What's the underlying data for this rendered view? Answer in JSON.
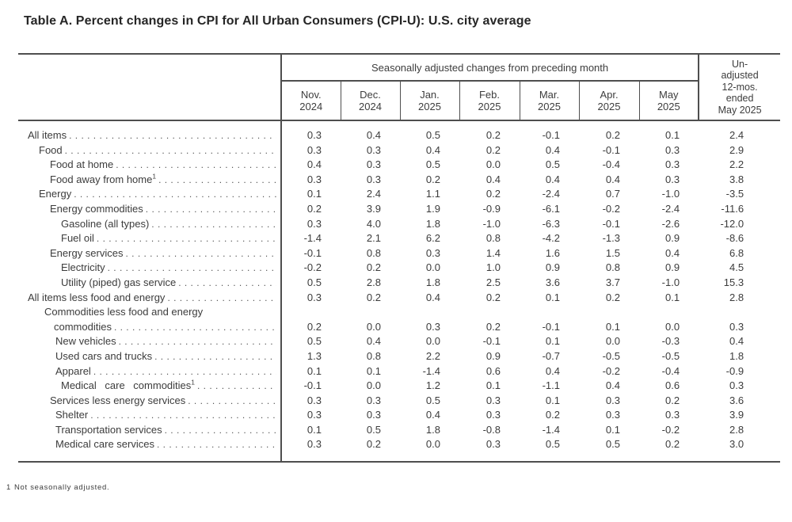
{
  "title": "Table A. Percent changes in CPI for All Urban Consumers (CPI-U): U.S. city average",
  "colors": {
    "text": "#3d3d3d",
    "title": "#262626",
    "border": "#4e4e4e",
    "background": "#ffffff"
  },
  "table": {
    "span_header": "Seasonally adjusted changes from preceding month",
    "months": [
      {
        "abbr": "Nov.",
        "year": "2024"
      },
      {
        "abbr": "Dec.",
        "year": "2024"
      },
      {
        "abbr": "Jan.",
        "year": "2025"
      },
      {
        "abbr": "Feb.",
        "year": "2025"
      },
      {
        "abbr": "Mar.",
        "year": "2025"
      },
      {
        "abbr": "Apr.",
        "year": "2025"
      },
      {
        "abbr": "May",
        "year": "2025"
      }
    ],
    "unadjusted_header_lines": [
      "Un-",
      "adjusted",
      "12-mos.",
      "ended",
      "May 2025"
    ],
    "rows": [
      {
        "label": "All items",
        "level": 0,
        "values": [
          "0.3",
          "0.4",
          "0.5",
          "0.2",
          "-0.1",
          "0.2",
          "0.1",
          "2.4"
        ]
      },
      {
        "label": "Food",
        "level": 1,
        "values": [
          "0.3",
          "0.3",
          "0.4",
          "0.2",
          "0.4",
          "-0.1",
          "0.3",
          "2.9"
        ]
      },
      {
        "label": "Food at home",
        "level": 2,
        "values": [
          "0.4",
          "0.3",
          "0.5",
          "0.0",
          "0.5",
          "-0.4",
          "0.3",
          "2.2"
        ]
      },
      {
        "label": "Food away from home",
        "sup": "1",
        "level": 2,
        "values": [
          "0.3",
          "0.3",
          "0.2",
          "0.4",
          "0.4",
          "0.4",
          "0.3",
          "3.8"
        ]
      },
      {
        "label": "Energy",
        "level": 1,
        "values": [
          "0.1",
          "2.4",
          "1.1",
          "0.2",
          "-2.4",
          "0.7",
          "-1.0",
          "-3.5"
        ]
      },
      {
        "label": "Energy commodities",
        "level": 2,
        "values": [
          "0.2",
          "3.9",
          "1.9",
          "-0.9",
          "-6.1",
          "-0.2",
          "-2.4",
          "-11.6"
        ]
      },
      {
        "label": "Gasoline (all types)",
        "level": 3,
        "values": [
          "0.3",
          "4.0",
          "1.8",
          "-1.0",
          "-6.3",
          "-0.1",
          "-2.6",
          "-12.0"
        ]
      },
      {
        "label": "Fuel oil",
        "level": 3,
        "values": [
          "-1.4",
          "2.1",
          "6.2",
          "0.8",
          "-4.2",
          "-1.3",
          "0.9",
          "-8.6"
        ]
      },
      {
        "label": "Energy services",
        "level": 2,
        "values": [
          "-0.1",
          "0.8",
          "0.3",
          "1.4",
          "1.6",
          "1.5",
          "0.4",
          "6.8"
        ]
      },
      {
        "label": "Electricity",
        "level": 3,
        "values": [
          "-0.2",
          "0.2",
          "0.0",
          "1.0",
          "0.9",
          "0.8",
          "0.9",
          "4.5"
        ]
      },
      {
        "label": "Utility (piped) gas service",
        "level": 3,
        "values": [
          "0.5",
          "2.8",
          "1.8",
          "2.5",
          "3.6",
          "3.7",
          "-1.0",
          "15.3"
        ]
      },
      {
        "label": "All items less food and energy",
        "level": 0,
        "values": [
          "0.3",
          "0.2",
          "0.4",
          "0.2",
          "0.1",
          "0.2",
          "0.1",
          "2.8"
        ]
      },
      {
        "label": "Commodities less food and energy",
        "label2": "commodities",
        "level": 1.5,
        "values": [
          "0.2",
          "0.0",
          "0.3",
          "0.2",
          "-0.1",
          "0.1",
          "0.0",
          "0.3"
        ]
      },
      {
        "label": "New vehicles",
        "level": 2.5,
        "values": [
          "0.5",
          "0.4",
          "0.0",
          "-0.1",
          "0.1",
          "0.0",
          "-0.3",
          "0.4"
        ]
      },
      {
        "label": "Used cars and trucks",
        "level": 2.5,
        "values": [
          "1.3",
          "0.8",
          "2.2",
          "0.9",
          "-0.7",
          "-0.5",
          "-0.5",
          "1.8"
        ]
      },
      {
        "label": "Apparel",
        "level": 2.5,
        "values": [
          "0.1",
          "0.1",
          "-1.4",
          "0.6",
          "0.4",
          "-0.2",
          "-0.4",
          "-0.9"
        ]
      },
      {
        "label": "Medical care commodities",
        "sup": "1",
        "level": 3,
        "values": [
          "-0.1",
          "0.0",
          "1.2",
          "0.1",
          "-1.1",
          "0.4",
          "0.6",
          "0.3"
        ]
      },
      {
        "label": "Services less energy services",
        "level": 2,
        "values": [
          "0.3",
          "0.3",
          "0.5",
          "0.3",
          "0.1",
          "0.3",
          "0.2",
          "3.6"
        ]
      },
      {
        "label": "Shelter",
        "level": 2.5,
        "values": [
          "0.3",
          "0.3",
          "0.4",
          "0.3",
          "0.2",
          "0.3",
          "0.3",
          "3.9"
        ]
      },
      {
        "label": "Transportation services",
        "level": 2.5,
        "values": [
          "0.1",
          "0.5",
          "1.8",
          "-0.8",
          "-1.4",
          "0.1",
          "-0.2",
          "2.8"
        ]
      },
      {
        "label": "Medical care services",
        "level": 2.5,
        "values": [
          "0.3",
          "0.2",
          "0.0",
          "0.3",
          "0.5",
          "0.5",
          "0.2",
          "3.0"
        ]
      }
    ]
  },
  "footnote": {
    "marker": "1",
    "text": "Not seasonally adjusted."
  }
}
